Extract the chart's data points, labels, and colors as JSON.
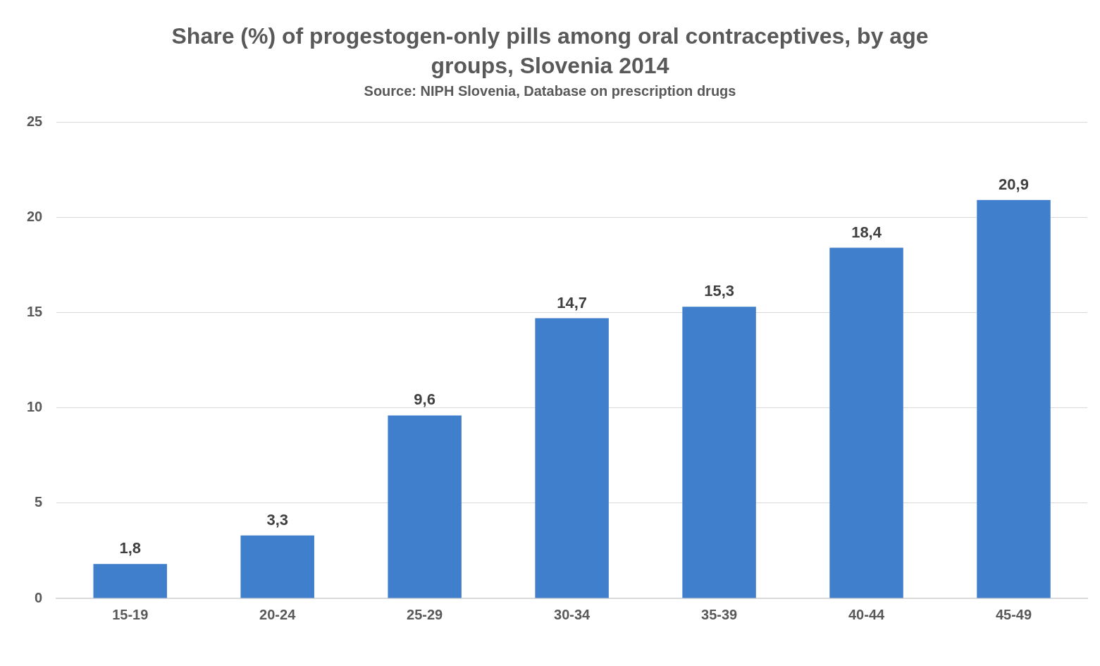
{
  "chart_data": {
    "type": "bar",
    "title": "Share (%) of progestogen-only pills among oral contraceptives, by age groups, Slovenia 2014",
    "subtitle": "Source: NIPH Slovenia, Database on prescription drugs",
    "categories": [
      "15-19",
      "20-24",
      "25-29",
      "30-34",
      "35-39",
      "40-44",
      "45-49"
    ],
    "values": [
      1.8,
      3.3,
      9.6,
      14.7,
      15.3,
      18.4,
      20.9
    ],
    "value_labels": [
      "1,8",
      "3,3",
      "9,6",
      "14,7",
      "15,3",
      "18,4",
      "20,9"
    ],
    "color": "#3f7fcc",
    "ylim": [
      0,
      25
    ],
    "yticks": [
      0,
      5,
      10,
      15,
      20,
      25
    ],
    "grid": "y",
    "legend": false
  }
}
